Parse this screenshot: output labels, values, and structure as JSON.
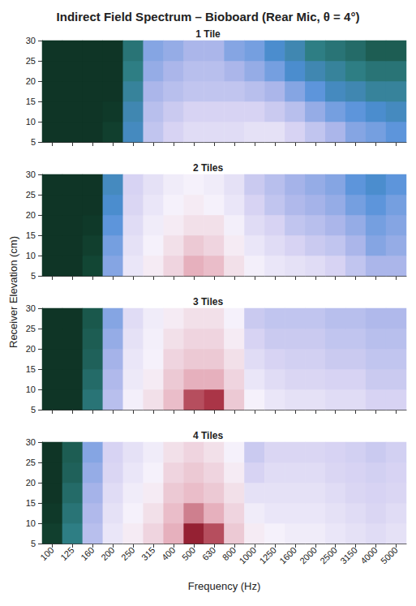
{
  "title": "Indirect Field Spectrum – Bioboard (Rear Mic, θ = 4°)",
  "xlabel": "Frequency (Hz)",
  "ylabel": "Receiver Elevation (cm)",
  "chart_data": [
    {
      "type": "heatmap",
      "title": "1 Tile",
      "tick_labels": "y",
      "categories": [
        "100",
        "125",
        "160",
        "200",
        "250",
        "315",
        "400",
        "500",
        "630",
        "800",
        "1000",
        "1250",
        "1600",
        "2000",
        "2500",
        "3150",
        "4000",
        "5000"
      ],
      "y": [
        7.5,
        12.5,
        17.5,
        22.5,
        27.5
      ],
      "ylim": [
        5,
        30
      ],
      "yticks": [
        5,
        10,
        15,
        20,
        25,
        30
      ],
      "zlim": [
        0,
        100
      ],
      "values": [
        [
          5,
          5,
          5,
          8,
          30,
          50,
          55,
          58,
          58,
          58,
          60,
          60,
          55,
          50,
          45,
          40,
          38,
          35
        ],
        [
          5,
          5,
          5,
          6,
          28,
          48,
          52,
          55,
          55,
          55,
          55,
          52,
          48,
          42,
          38,
          35,
          32,
          30
        ],
        [
          5,
          5,
          5,
          5,
          25,
          45,
          48,
          50,
          50,
          50,
          48,
          45,
          40,
          35,
          30,
          28,
          25,
          25
        ],
        [
          5,
          5,
          5,
          5,
          22,
          42,
          45,
          48,
          48,
          45,
          42,
          38,
          32,
          28,
          25,
          22,
          20,
          20
        ],
        [
          5,
          5,
          5,
          5,
          20,
          40,
          42,
          45,
          45,
          40,
          38,
          32,
          28,
          22,
          20,
          18,
          15,
          15
        ]
      ]
    },
    {
      "type": "heatmap",
      "title": "2 Tiles",
      "tick_labels": "y",
      "categories": [
        "100",
        "125",
        "160",
        "200",
        "250",
        "315",
        "400",
        "500",
        "630",
        "800",
        "1000",
        "1250",
        "1600",
        "2000",
        "2500",
        "3150",
        "4000",
        "5000"
      ],
      "y": [
        7.5,
        12.5,
        17.5,
        22.5,
        27.5
      ],
      "ylim": [
        5,
        30
      ],
      "yticks": [
        5,
        10,
        15,
        20,
        25,
        30
      ],
      "zlim": [
        0,
        100
      ],
      "values": [
        [
          5,
          5,
          10,
          40,
          62,
          68,
          72,
          78,
          76,
          70,
          65,
          62,
          60,
          58,
          55,
          50,
          45,
          45
        ],
        [
          5,
          5,
          8,
          38,
          60,
          66,
          70,
          74,
          72,
          68,
          62,
          58,
          55,
          52,
          50,
          45,
          40,
          42
        ],
        [
          5,
          5,
          6,
          35,
          58,
          64,
          68,
          70,
          70,
          65,
          58,
          55,
          50,
          48,
          45,
          42,
          38,
          40
        ],
        [
          5,
          5,
          5,
          32,
          56,
          62,
          66,
          68,
          66,
          62,
          55,
          50,
          46,
          44,
          42,
          38,
          35,
          38
        ],
        [
          5,
          5,
          5,
          30,
          55,
          60,
          64,
          66,
          64,
          60,
          52,
          48,
          44,
          42,
          40,
          35,
          32,
          35
        ]
      ]
    },
    {
      "type": "heatmap",
      "title": "3 Tiles",
      "tick_labels": "y",
      "categories": [
        "100",
        "125",
        "160",
        "200",
        "250",
        "315",
        "400",
        "500",
        "630",
        "800",
        "1000",
        "1250",
        "1600",
        "2000",
        "2500",
        "3150",
        "4000",
        "5000"
      ],
      "y": [
        7.5,
        12.5,
        17.5,
        22.5,
        27.5
      ],
      "ylim": [
        5,
        30
      ],
      "yticks": [
        5,
        10,
        15,
        20,
        25,
        30
      ],
      "zlim": [
        0,
        100
      ],
      "values": [
        [
          5,
          5,
          20,
          48,
          65,
          70,
          76,
          86,
          88,
          74,
          66,
          62,
          60,
          60,
          58,
          58,
          55,
          55
        ],
        [
          5,
          5,
          18,
          46,
          63,
          68,
          74,
          78,
          78,
          72,
          62,
          58,
          56,
          56,
          55,
          55,
          52,
          52
        ],
        [
          5,
          5,
          16,
          44,
          62,
          66,
          72,
          74,
          74,
          70,
          58,
          55,
          54,
          54,
          52,
          52,
          50,
          50
        ],
        [
          5,
          5,
          15,
          42,
          60,
          65,
          70,
          72,
          72,
          68,
          55,
          52,
          52,
          52,
          50,
          50,
          48,
          48
        ],
        [
          5,
          5,
          14,
          40,
          58,
          64,
          68,
          70,
          70,
          66,
          52,
          50,
          50,
          50,
          48,
          48,
          46,
          46
        ]
      ]
    },
    {
      "type": "heatmap",
      "title": "4 Tiles",
      "categories": [
        "100",
        "125",
        "160",
        "200",
        "250",
        "315",
        "400",
        "500",
        "630",
        "800",
        "1000",
        "1250",
        "1600",
        "2000",
        "2500",
        "3150",
        "4000",
        "5000"
      ],
      "y": [
        7.5,
        12.5,
        17.5,
        22.5,
        27.5
      ],
      "ylim": [
        5,
        30
      ],
      "yticks": [
        5,
        10,
        15,
        20,
        25,
        30
      ],
      "zlim": [
        0,
        100
      ],
      "values": [
        [
          8,
          22,
          48,
          62,
          68,
          72,
          78,
          92,
          86,
          74,
          68,
          66,
          64,
          64,
          62,
          60,
          58,
          60
        ],
        [
          6,
          20,
          46,
          60,
          66,
          70,
          76,
          82,
          78,
          72,
          64,
          62,
          62,
          62,
          60,
          58,
          56,
          58
        ],
        [
          5,
          18,
          44,
          58,
          64,
          68,
          74,
          76,
          74,
          70,
          60,
          60,
          60,
          60,
          58,
          56,
          55,
          56
        ],
        [
          5,
          16,
          42,
          56,
          62,
          66,
          72,
          74,
          72,
          68,
          55,
          58,
          58,
          58,
          56,
          55,
          54,
          55
        ],
        [
          5,
          15,
          40,
          55,
          60,
          64,
          70,
          72,
          70,
          66,
          52,
          56,
          56,
          56,
          55,
          54,
          52,
          54
        ]
      ]
    }
  ]
}
